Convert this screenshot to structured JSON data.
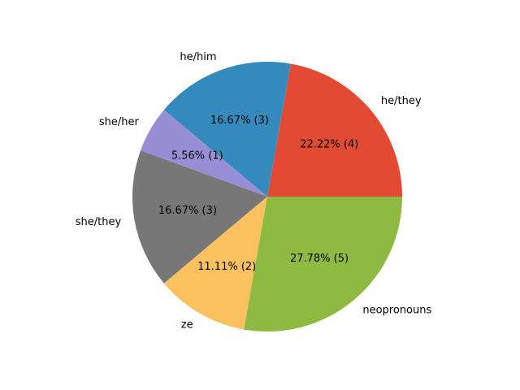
{
  "chart_data": {
    "type": "pie",
    "slices": [
      {
        "label": "he/they",
        "value": 4,
        "percent_label": "22.22%  (4)",
        "color": "#E24A33"
      },
      {
        "label": "he/him",
        "value": 3,
        "percent_label": "16.67%  (3)",
        "color": "#348ABD"
      },
      {
        "label": "she/her",
        "value": 1,
        "percent_label": "5.56%  (1)",
        "color": "#988ED5"
      },
      {
        "label": "she/they",
        "value": 3,
        "percent_label": "16.67%  (3)",
        "color": "#777777"
      },
      {
        "label": "ze",
        "value": 2,
        "percent_label": "11.11%  (2)",
        "color": "#FBC15E"
      },
      {
        "label": "neopronouns",
        "value": 5,
        "percent_label": "27.78%  (5)",
        "color": "#8EBA42"
      }
    ],
    "start_angle_deg": 0,
    "direction": "counterclockwise",
    "legend": "none",
    "grid": false
  }
}
